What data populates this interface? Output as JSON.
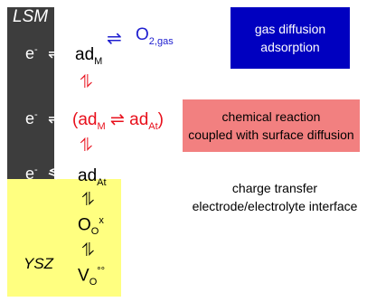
{
  "electrode": {
    "name": "LSM",
    "color": "#3d3d3d"
  },
  "electrolyte": {
    "name": "YSZ",
    "color": "#ffff80"
  },
  "electron": {
    "symbol": "e",
    "charge": "-"
  },
  "species": {
    "ad": "ad",
    "sub_M": "M",
    "sub_At": "At",
    "o2_base": "O",
    "o2_sub": "2,gas",
    "oo_base": "O",
    "oo_sub": "O",
    "oo_sup": "x",
    "vo_base": "V",
    "vo_sub": "O",
    "vo_sup": "°°"
  },
  "arrows": {
    "equilibrium": "⇌",
    "half_equilibrium": "⇋",
    "vertical": "⥮"
  },
  "punctuation": {
    "open": "(",
    "close": ")"
  },
  "labels": {
    "gas_line1": "gas diffusion",
    "gas_line2": "adsorption",
    "chem_line1": "chemical reaction",
    "chem_line2": "coupled with surface diffusion",
    "charge_line1": "charge transfer",
    "charge_line2": "electrode/electrolyte interface"
  },
  "colors": {
    "reaction_red": "#e8101c",
    "gas_blue": "#0000c0",
    "chem_box": "#f28080"
  }
}
